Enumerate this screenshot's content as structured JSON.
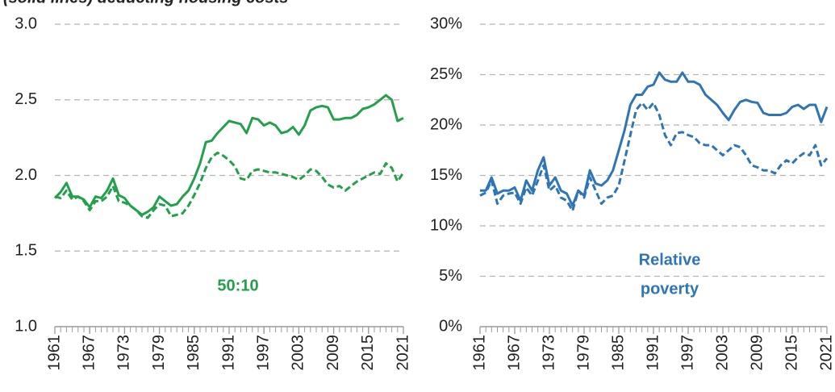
{
  "chart_data": [
    {
      "type": "line",
      "title": "(solid lines) deducting housing costs",
      "x": [
        1961,
        1962,
        1963,
        1964,
        1965,
        1966,
        1967,
        1968,
        1969,
        1970,
        1971,
        1972,
        1973,
        1974,
        1975,
        1976,
        1977,
        1978,
        1979,
        1980,
        1981,
        1982,
        1983,
        1984,
        1985,
        1986,
        1987,
        1988,
        1989,
        1990,
        1991,
        1992,
        1993,
        1994,
        1995,
        1996,
        1997,
        1998,
        1999,
        2000,
        2001,
        2002,
        2003,
        2004,
        2005,
        2006,
        2007,
        2008,
        2009,
        2010,
        2011,
        2012,
        2013,
        2014,
        2015,
        2016,
        2017,
        2018,
        2019,
        2020,
        2021
      ],
      "xlim": [
        1961,
        2021
      ],
      "xticks": [
        1961,
        1967,
        1973,
        1979,
        1985,
        1991,
        1997,
        2003,
        2009,
        2015,
        2021
      ],
      "ylim": [
        1,
        3
      ],
      "yticks": [
        {
          "value": 1,
          "label": "1.0"
        },
        1.5,
        {
          "value": 2,
          "label": "2.0"
        },
        2.5,
        {
          "value": 3,
          "label": "3.0"
        }
      ],
      "grid": true,
      "annotation": [
        "50:10"
      ],
      "annotation_color": "#22a04b",
      "series": [
        {
          "color": "#22a04b",
          "dashed": false,
          "values": [
            1.85,
            1.89,
            1.95,
            1.86,
            1.86,
            1.84,
            1.79,
            1.86,
            1.85,
            1.9,
            1.98,
            1.87,
            1.85,
            1.8,
            1.77,
            1.74,
            1.76,
            1.79,
            1.86,
            1.83,
            1.8,
            1.81,
            1.86,
            1.9,
            1.98,
            2.08,
            2.22,
            2.23,
            2.28,
            2.32,
            2.36,
            2.35,
            2.34,
            2.28,
            2.38,
            2.37,
            2.33,
            2.35,
            2.33,
            2.28,
            2.29,
            2.32,
            2.27,
            2.33,
            2.43,
            2.45,
            2.46,
            2.45,
            2.37,
            2.37,
            2.38,
            2.38,
            2.4,
            2.44,
            2.45,
            2.47,
            2.5,
            2.53,
            2.5,
            2.36,
            2.38
          ]
        },
        {
          "color": "#22a04b",
          "dashed": true,
          "values": [
            1.86,
            1.85,
            1.9,
            1.84,
            1.86,
            1.83,
            1.77,
            1.83,
            1.83,
            1.86,
            1.93,
            1.83,
            1.82,
            1.8,
            1.77,
            1.73,
            1.72,
            1.77,
            1.81,
            1.8,
            1.73,
            1.74,
            1.75,
            1.8,
            1.87,
            1.95,
            2.05,
            2.12,
            2.15,
            2.13,
            2.1,
            2.06,
            1.98,
            1.97,
            2.03,
            2.04,
            2.03,
            2.02,
            2.02,
            2.01,
            2.0,
            1.99,
            1.97,
            2.0,
            2.04,
            2.03,
            1.99,
            1.94,
            1.92,
            1.93,
            1.9,
            1.93,
            1.96,
            1.98,
            2.0,
            2.02,
            2.01,
            2.08,
            2.05,
            1.96,
            2.02
          ]
        }
      ]
    },
    {
      "type": "line",
      "x": [
        1961,
        1962,
        1963,
        1964,
        1965,
        1966,
        1967,
        1968,
        1969,
        1970,
        1971,
        1972,
        1973,
        1974,
        1975,
        1976,
        1977,
        1978,
        1979,
        1980,
        1981,
        1982,
        1983,
        1984,
        1985,
        1986,
        1987,
        1988,
        1989,
        1990,
        1991,
        1992,
        1993,
        1994,
        1995,
        1996,
        1997,
        1998,
        1999,
        2000,
        2001,
        2002,
        2003,
        2004,
        2005,
        2006,
        2007,
        2008,
        2009,
        2010,
        2011,
        2012,
        2013,
        2014,
        2015,
        2016,
        2017,
        2018,
        2019,
        2020,
        2021
      ],
      "xlim": [
        1961,
        2021
      ],
      "xticks": [
        1961,
        1967,
        1973,
        1979,
        1985,
        1991,
        1997,
        2003,
        2009,
        2015,
        2021
      ],
      "ylim": [
        0,
        30
      ],
      "yticks": [
        {
          "value": 0,
          "label": "0%"
        },
        {
          "value": 5,
          "label": "5%"
        },
        {
          "value": 10,
          "label": "10%"
        },
        {
          "value": 15,
          "label": "15%"
        },
        {
          "value": 20,
          "label": "20%"
        },
        {
          "value": 25,
          "label": "25%"
        },
        {
          "value": 30,
          "label": "30%"
        }
      ],
      "grid": true,
      "annotation": [
        "Relative",
        "poverty"
      ],
      "annotation_color": "#2e75b6",
      "series": [
        {
          "color": "#2e75b6",
          "dashed": false,
          "values": [
            13.5,
            13.5,
            14.8,
            13.2,
            13.5,
            13.5,
            13.8,
            12.5,
            14.5,
            13.5,
            15.5,
            16.8,
            14.0,
            14.8,
            13.5,
            13.2,
            12.0,
            13.5,
            13.0,
            15.5,
            14.2,
            14.0,
            14.5,
            15.5,
            17.5,
            19.5,
            22.0,
            23.0,
            23.0,
            23.8,
            24.0,
            25.2,
            24.5,
            24.3,
            24.3,
            25.2,
            24.3,
            24.3,
            24.0,
            23.0,
            22.5,
            22.0,
            21.2,
            20.5,
            21.5,
            22.3,
            22.5,
            22.3,
            22.2,
            21.2,
            21.0,
            21.0,
            21.0,
            21.2,
            21.8,
            22.0,
            21.6,
            22.0,
            22.0,
            20.3,
            21.8
          ]
        },
        {
          "color": "#2e75b6",
          "dashed": true,
          "values": [
            13.0,
            13.3,
            14.5,
            12.2,
            13.0,
            13.2,
            13.3,
            12.2,
            13.8,
            13.0,
            14.5,
            16.0,
            13.5,
            14.0,
            12.8,
            12.5,
            11.5,
            13.5,
            12.8,
            14.8,
            13.5,
            12.2,
            12.8,
            13.0,
            14.0,
            16.5,
            19.0,
            21.5,
            22.2,
            21.5,
            22.2,
            21.0,
            19.0,
            18.0,
            19.2,
            19.3,
            19.0,
            18.8,
            18.2,
            18.0,
            18.0,
            17.5,
            17.0,
            17.5,
            18.0,
            17.8,
            17.0,
            16.0,
            15.8,
            15.5,
            15.5,
            15.2,
            16.0,
            16.5,
            16.2,
            16.8,
            17.2,
            17.0,
            18.0,
            16.0,
            16.7
          ]
        }
      ]
    }
  ]
}
